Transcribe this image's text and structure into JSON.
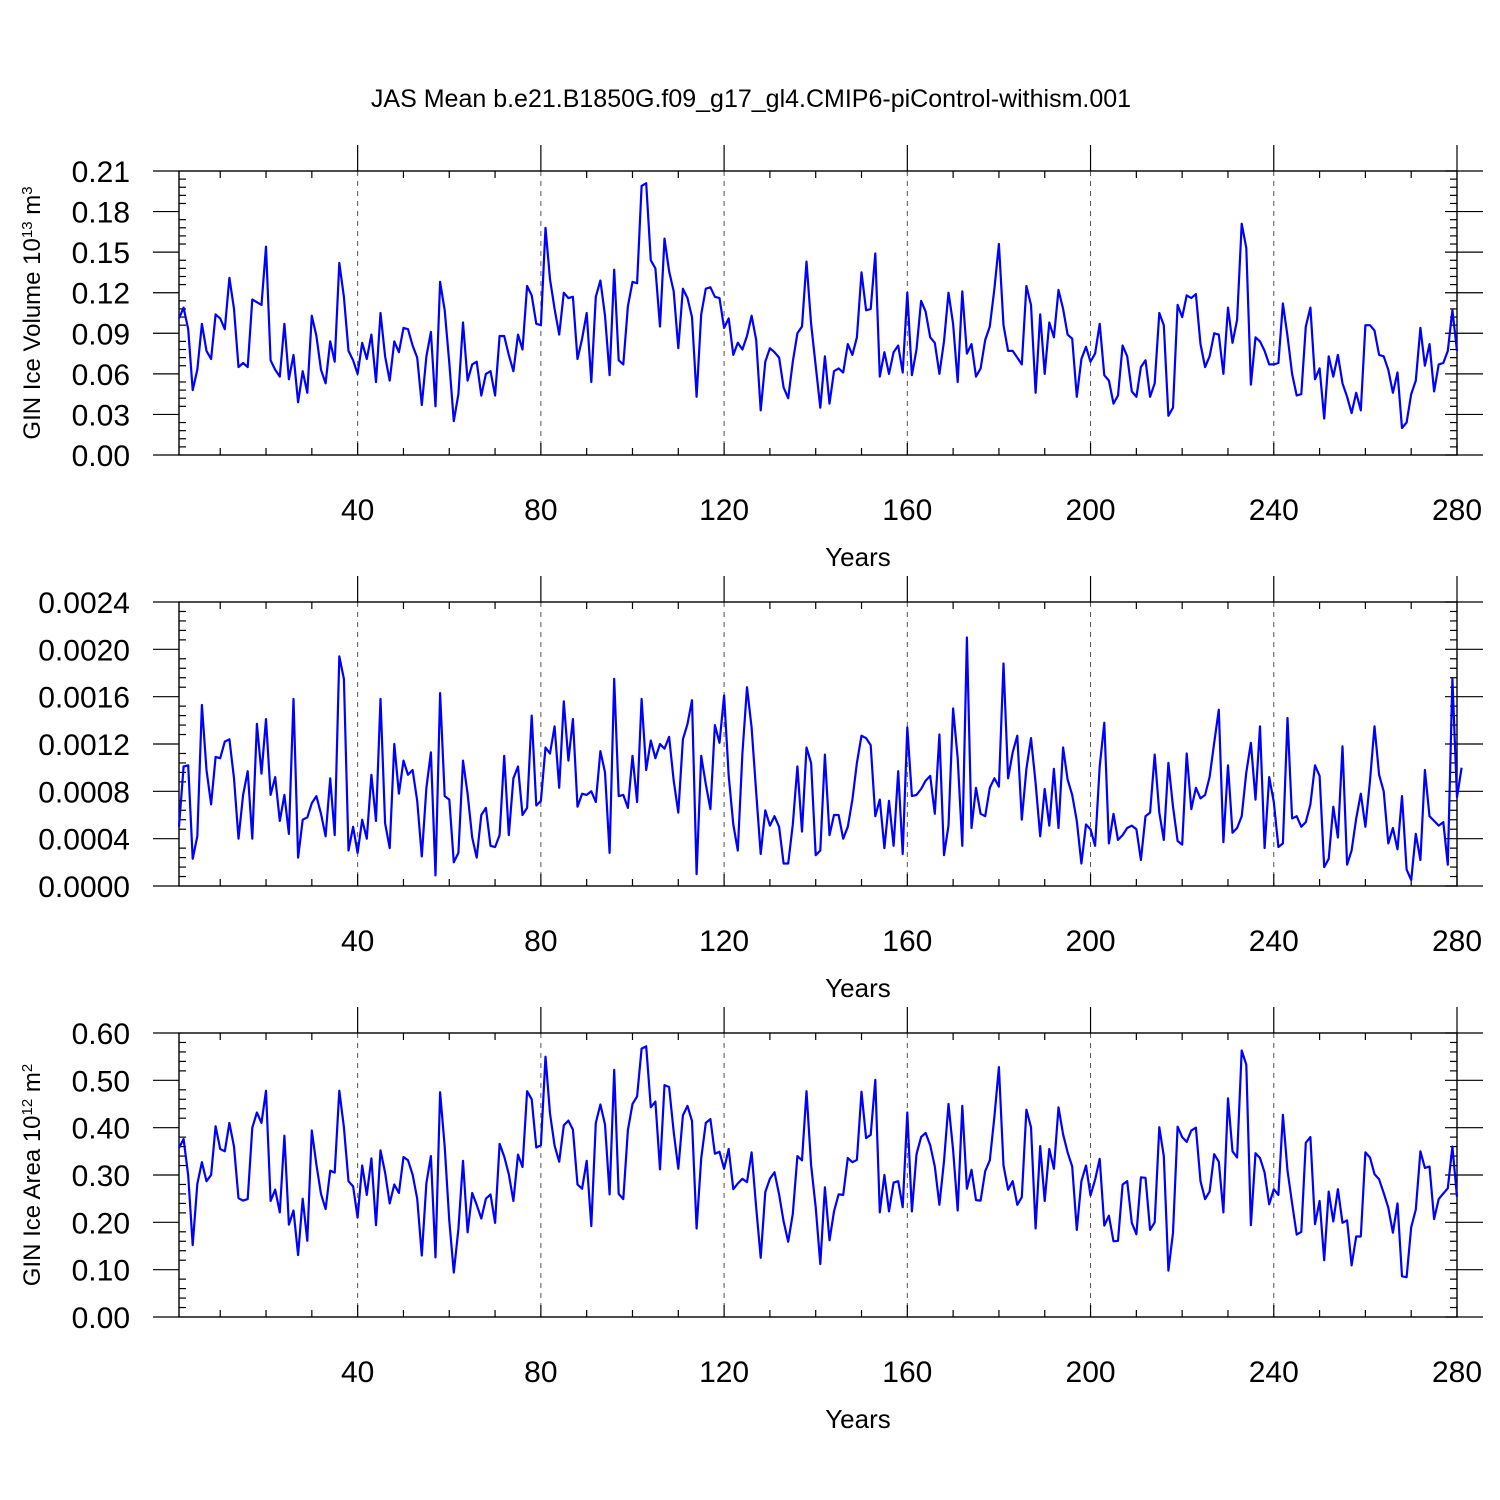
{
  "title": "JAS Mean b.e21.B1850G.f09_g17_gl4.CMIP6-piControl-withism.001",
  "chart_data": [
    {
      "type": "line",
      "xlabel": "Years",
      "ylabel": "GIN Ice Volume 10",
      "ylabel_sup": "13",
      "ylabel_unit": " m",
      "ylabel_unit_sup": "3",
      "xlim": [
        1,
        280
      ],
      "ylim": [
        0,
        0.21
      ],
      "xticks": [
        40,
        80,
        120,
        160,
        200,
        240,
        280
      ],
      "yticks": [
        "0.00",
        "0.03",
        "0.06",
        "0.09",
        "0.12",
        "0.15",
        "0.18",
        "0.21"
      ],
      "series_color": "#0000ff",
      "grid": "dashed vertical at major x ticks",
      "legend": "none",
      "values": [
        0.101,
        0.109,
        0.093,
        0.048,
        0.063,
        0.097,
        0.077,
        0.071,
        0.104,
        0.101,
        0.093,
        0.131,
        0.108,
        0.065,
        0.068,
        0.065,
        0.115,
        0.113,
        0.111,
        0.154,
        0.07,
        0.063,
        0.058,
        0.097,
        0.056,
        0.074,
        0.039,
        0.062,
        0.046,
        0.103,
        0.088,
        0.063,
        0.053,
        0.084,
        0.069,
        0.142,
        0.117,
        0.077,
        0.07,
        0.06,
        0.083,
        0.071,
        0.089,
        0.054,
        0.105,
        0.073,
        0.055,
        0.084,
        0.076,
        0.094,
        0.093,
        0.081,
        0.072,
        0.037,
        0.073,
        0.091,
        0.036,
        0.128,
        0.107,
        0.068,
        0.025,
        0.045,
        0.098,
        0.055,
        0.067,
        0.069,
        0.044,
        0.06,
        0.062,
        0.044,
        0.088,
        0.088,
        0.074,
        0.062,
        0.089,
        0.078,
        0.125,
        0.118,
        0.097,
        0.096,
        0.168,
        0.13,
        0.108,
        0.089,
        0.12,
        0.116,
        0.117,
        0.071,
        0.086,
        0.105,
        0.054,
        0.117,
        0.129,
        0.103,
        0.059,
        0.137,
        0.07,
        0.067,
        0.11,
        0.128,
        0.127,
        0.199,
        0.201,
        0.144,
        0.138,
        0.095,
        0.16,
        0.136,
        0.121,
        0.079,
        0.123,
        0.116,
        0.102,
        0.043,
        0.104,
        0.123,
        0.124,
        0.117,
        0.116,
        0.094,
        0.101,
        0.074,
        0.083,
        0.078,
        0.088,
        0.103,
        0.085,
        0.033,
        0.069,
        0.079,
        0.076,
        0.072,
        0.05,
        0.042,
        0.069,
        0.09,
        0.095,
        0.143,
        0.097,
        0.066,
        0.035,
        0.073,
        0.038,
        0.062,
        0.064,
        0.061,
        0.082,
        0.074,
        0.087,
        0.135,
        0.107,
        0.108,
        0.149,
        0.058,
        0.076,
        0.06,
        0.076,
        0.081,
        0.061,
        0.12,
        0.059,
        0.078,
        0.114,
        0.106,
        0.087,
        0.083,
        0.06,
        0.084,
        0.12,
        0.097,
        0.054,
        0.121,
        0.075,
        0.082,
        0.058,
        0.064,
        0.085,
        0.095,
        0.123,
        0.156,
        0.096,
        0.077,
        0.077,
        0.072,
        0.067,
        0.125,
        0.111,
        0.046,
        0.104,
        0.06,
        0.098,
        0.087,
        0.122,
        0.108,
        0.089,
        0.086,
        0.043,
        0.071,
        0.08,
        0.069,
        0.075,
        0.097,
        0.059,
        0.055,
        0.038,
        0.044,
        0.081,
        0.073,
        0.047,
        0.043,
        0.065,
        0.07,
        0.043,
        0.053,
        0.105,
        0.096,
        0.029,
        0.035,
        0.111,
        0.102,
        0.118,
        0.116,
        0.119,
        0.082,
        0.065,
        0.073,
        0.09,
        0.089,
        0.06,
        0.109,
        0.083,
        0.1,
        0.171,
        0.153,
        0.052,
        0.087,
        0.084,
        0.077,
        0.067,
        0.067,
        0.068,
        0.112,
        0.088,
        0.06,
        0.044,
        0.045,
        0.095,
        0.109,
        0.056,
        0.064,
        0.027,
        0.073,
        0.058,
        0.074,
        0.053,
        0.043,
        0.031,
        0.046,
        0.033,
        0.096,
        0.096,
        0.092,
        0.074,
        0.073,
        0.063,
        0.046,
        0.061,
        0.02,
        0.024,
        0.045,
        0.055,
        0.094,
        0.066,
        0.082,
        0.047,
        0.067,
        0.068,
        0.077,
        0.107,
        0.077
      ]
    },
    {
      "type": "line",
      "xlabel": "Years",
      "ylabel": "",
      "xlim": [
        1,
        280
      ],
      "ylim": [
        0,
        0.0024
      ],
      "xticks": [
        40,
        80,
        120,
        160,
        200,
        240,
        280
      ],
      "yticks": [
        "0.0000",
        "0.0004",
        "0.0008",
        "0.0012",
        "0.0016",
        "0.0020",
        "0.0024"
      ],
      "series_color": "#0000ff",
      "grid": "dashed vertical at major x ticks",
      "legend": "none",
      "values": [
        0.0005,
        0.00101,
        0.00102,
        0.00023,
        0.00042,
        0.00153,
        0.00098,
        0.00069,
        0.00109,
        0.00108,
        0.00122,
        0.00124,
        0.00091,
        0.0004,
        0.00077,
        0.00097,
        0.0004,
        0.00137,
        0.00095,
        0.00141,
        0.00077,
        0.00092,
        0.00055,
        0.00077,
        0.00044,
        0.00158,
        0.00024,
        0.00056,
        0.00058,
        0.0007,
        0.00076,
        0.00061,
        0.00042,
        0.00091,
        0.00043,
        0.00194,
        0.00175,
        0.0003,
        0.0005,
        0.00028,
        0.00056,
        0.0004,
        0.00094,
        0.00055,
        0.00158,
        0.00053,
        0.00032,
        0.0012,
        0.00078,
        0.00106,
        0.00094,
        0.00098,
        0.00072,
        0.00025,
        0.00083,
        0.00113,
        9e-05,
        0.00163,
        0.00076,
        0.00073,
        0.0002,
        0.00028,
        0.00106,
        0.00078,
        0.00041,
        0.00024,
        0.0006,
        0.00066,
        0.00034,
        0.00033,
        0.00043,
        0.0011,
        0.00043,
        0.00091,
        0.00101,
        0.0006,
        0.00066,
        0.00144,
        0.00068,
        0.00072,
        0.00117,
        0.00112,
        0.00135,
        0.00083,
        0.00156,
        0.00106,
        0.00141,
        0.00067,
        0.00078,
        0.00077,
        0.0008,
        0.00071,
        0.00114,
        0.00096,
        0.00028,
        0.00175,
        0.00076,
        0.00077,
        0.00066,
        0.0011,
        0.00071,
        0.00158,
        0.00098,
        0.00123,
        0.00108,
        0.0012,
        0.00116,
        0.00126,
        0.00089,
        0.00062,
        0.00124,
        0.00137,
        0.00157,
        0.0001,
        0.0011,
        0.00086,
        0.00065,
        0.00136,
        0.00121,
        0.00161,
        0.00093,
        0.00052,
        0.0003,
        0.00112,
        0.00168,
        0.00134,
        0.00079,
        0.00027,
        0.00064,
        0.00051,
        0.00059,
        0.0005,
        0.00019,
        0.00019,
        0.00052,
        0.00101,
        0.00046,
        0.00117,
        0.00104,
        0.00026,
        0.0003,
        0.00111,
        0.00043,
        0.0006,
        0.0006,
        0.0004,
        0.0005,
        0.00073,
        0.00104,
        0.00127,
        0.00125,
        0.00119,
        0.00059,
        0.00073,
        0.00032,
        0.00072,
        0.00034,
        0.00097,
        0.00027,
        0.00134,
        0.00076,
        0.00077,
        0.00082,
        0.00089,
        0.00093,
        0.00061,
        0.00128,
        0.00026,
        0.00051,
        0.0015,
        0.00108,
        0.00034,
        0.0021,
        0.00049,
        0.00083,
        0.00061,
        0.00059,
        0.00083,
        0.00091,
        0.00084,
        0.00188,
        0.00091,
        0.00113,
        0.00127,
        0.00056,
        0.00099,
        0.00125,
        0.00087,
        0.00042,
        0.00082,
        0.00051,
        0.00099,
        0.00049,
        0.00117,
        0.0009,
        0.00077,
        0.00055,
        0.00019,
        0.00052,
        0.00048,
        0.00034,
        0.00101,
        0.00138,
        0.00036,
        0.00061,
        0.00039,
        0.00043,
        0.00049,
        0.00051,
        0.00048,
        0.00022,
        0.00059,
        0.00062,
        0.00111,
        0.00062,
        0.00039,
        0.00104,
        0.00067,
        0.00038,
        0.00035,
        0.00112,
        0.00065,
        0.00083,
        0.00074,
        0.00077,
        0.00092,
        0.00121,
        0.00149,
        0.00037,
        0.00102,
        0.00045,
        0.00049,
        0.00059,
        0.00096,
        0.00121,
        0.00073,
        0.00135,
        0.00032,
        0.00092,
        0.00071,
        0.00033,
        0.00036,
        0.00142,
        0.00057,
        0.00059,
        0.0005,
        0.00054,
        0.00069,
        0.00102,
        0.00093,
        0.00016,
        0.00023,
        0.00067,
        0.00041,
        0.00118,
        0.00018,
        0.0003,
        0.00057,
        0.00078,
        0.0005,
        0.00089,
        0.00135,
        0.00094,
        0.0008,
        0.00036,
        0.00049,
        0.00031,
        0.00076,
        0.00014,
        5e-05,
        0.00044,
        0.00022,
        0.00098,
        0.00059,
        0.00055,
        0.00051,
        0.00054,
        0.00018,
        0.00175,
        0.00075,
        0.001
      ]
    },
    {
      "type": "line",
      "xlabel": "Years",
      "ylabel": "GIN Ice Area 10",
      "ylabel_sup": "12",
      "ylabel_unit": " m",
      "ylabel_unit_sup": "2",
      "xlim": [
        1,
        280
      ],
      "ylim": [
        0,
        0.6
      ],
      "xticks": [
        40,
        80,
        120,
        160,
        200,
        240,
        280
      ],
      "yticks": [
        "0.00",
        "0.10",
        "0.20",
        "0.30",
        "0.40",
        "0.50",
        "0.60"
      ],
      "series_color": "#0000ff",
      "grid": "dashed vertical at major x ticks",
      "legend": "none",
      "values": [
        0.357,
        0.376,
        0.299,
        0.152,
        0.281,
        0.327,
        0.287,
        0.3,
        0.403,
        0.355,
        0.35,
        0.41,
        0.36,
        0.251,
        0.246,
        0.249,
        0.4,
        0.432,
        0.41,
        0.478,
        0.245,
        0.269,
        0.221,
        0.383,
        0.195,
        0.225,
        0.131,
        0.25,
        0.161,
        0.394,
        0.322,
        0.26,
        0.228,
        0.309,
        0.305,
        0.478,
        0.401,
        0.287,
        0.276,
        0.21,
        0.32,
        0.258,
        0.335,
        0.194,
        0.352,
        0.305,
        0.24,
        0.28,
        0.262,
        0.338,
        0.331,
        0.301,
        0.25,
        0.13,
        0.283,
        0.34,
        0.126,
        0.475,
        0.36,
        0.203,
        0.094,
        0.186,
        0.33,
        0.179,
        0.262,
        0.237,
        0.208,
        0.25,
        0.259,
        0.199,
        0.366,
        0.339,
        0.302,
        0.245,
        0.343,
        0.317,
        0.477,
        0.46,
        0.358,
        0.363,
        0.55,
        0.43,
        0.362,
        0.328,
        0.405,
        0.415,
        0.396,
        0.28,
        0.271,
        0.33,
        0.192,
        0.41,
        0.449,
        0.407,
        0.259,
        0.522,
        0.26,
        0.249,
        0.395,
        0.45,
        0.466,
        0.567,
        0.572,
        0.443,
        0.455,
        0.312,
        0.49,
        0.486,
        0.391,
        0.313,
        0.426,
        0.446,
        0.414,
        0.187,
        0.335,
        0.41,
        0.418,
        0.345,
        0.349,
        0.313,
        0.355,
        0.27,
        0.282,
        0.292,
        0.285,
        0.348,
        0.231,
        0.125,
        0.264,
        0.292,
        0.306,
        0.259,
        0.202,
        0.159,
        0.218,
        0.34,
        0.331,
        0.477,
        0.321,
        0.232,
        0.112,
        0.274,
        0.162,
        0.223,
        0.259,
        0.258,
        0.336,
        0.327,
        0.332,
        0.476,
        0.378,
        0.385,
        0.501,
        0.221,
        0.3,
        0.223,
        0.284,
        0.287,
        0.232,
        0.432,
        0.223,
        0.344,
        0.38,
        0.389,
        0.363,
        0.318,
        0.237,
        0.329,
        0.45,
        0.353,
        0.225,
        0.446,
        0.271,
        0.311,
        0.247,
        0.246,
        0.308,
        0.331,
        0.423,
        0.528,
        0.32,
        0.269,
        0.287,
        0.237,
        0.253,
        0.438,
        0.401,
        0.187,
        0.361,
        0.245,
        0.355,
        0.313,
        0.443,
        0.386,
        0.348,
        0.318,
        0.184,
        0.287,
        0.32,
        0.257,
        0.29,
        0.334,
        0.193,
        0.214,
        0.16,
        0.161,
        0.28,
        0.287,
        0.199,
        0.175,
        0.295,
        0.294,
        0.184,
        0.2,
        0.401,
        0.34,
        0.098,
        0.178,
        0.402,
        0.38,
        0.37,
        0.394,
        0.4,
        0.287,
        0.249,
        0.265,
        0.344,
        0.328,
        0.221,
        0.462,
        0.35,
        0.337,
        0.563,
        0.533,
        0.194,
        0.346,
        0.336,
        0.305,
        0.238,
        0.27,
        0.258,
        0.427,
        0.309,
        0.24,
        0.174,
        0.18,
        0.368,
        0.38,
        0.196,
        0.245,
        0.12,
        0.265,
        0.202,
        0.27,
        0.199,
        0.204,
        0.109,
        0.17,
        0.17,
        0.348,
        0.337,
        0.302,
        0.291,
        0.262,
        0.231,
        0.178,
        0.24,
        0.086,
        0.084,
        0.19,
        0.227,
        0.35,
        0.315,
        0.318,
        0.207,
        0.249,
        0.261,
        0.272,
        0.36,
        0.254
      ]
    }
  ]
}
